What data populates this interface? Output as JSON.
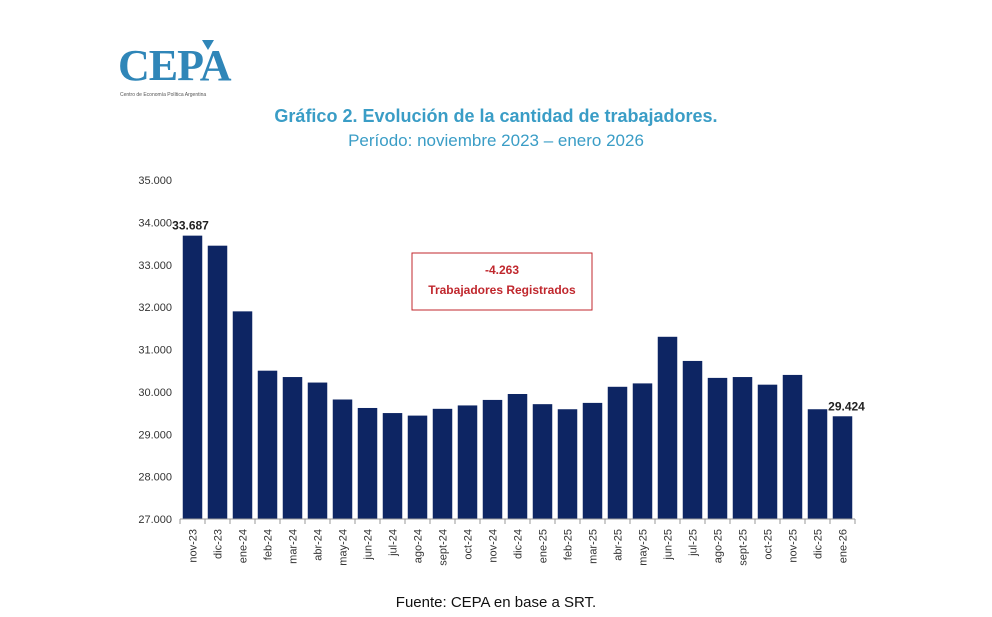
{
  "logo": {
    "text": "CEPA",
    "subtitle": "Centro de Economía Política Argentina"
  },
  "colors": {
    "bar": "#0d2563",
    "title": "#3a9dc6",
    "annotation": "#c0272d"
  },
  "annotation": {
    "value": "-4.263",
    "label": "Trabajadores Registrados"
  },
  "source": "Fuente: CEPA en base a SRT.",
  "chart_data": {
    "type": "bar",
    "title": "Gráfico 2. Evolución de la cantidad de trabajadores.",
    "subtitle": "Período: noviembre 2023 – enero 2026",
    "xlabel": "",
    "ylabel": "",
    "ylim": [
      27000,
      35000
    ],
    "yticks": [
      27000,
      28000,
      29000,
      30000,
      31000,
      32000,
      33000,
      34000,
      35000
    ],
    "ytick_labels": [
      "27.000",
      "28.000",
      "29.000",
      "30.000",
      "31.000",
      "32.000",
      "33.000",
      "34.000",
      "35.000"
    ],
    "categories": [
      "nov-23",
      "dic-23",
      "ene-24",
      "feb-24",
      "mar-24",
      "abr-24",
      "may-24",
      "jun-24",
      "jul-24",
      "ago-24",
      "sept-24",
      "oct-24",
      "nov-24",
      "dic-24",
      "ene-25",
      "feb-25",
      "mar-25",
      "abr-25",
      "may-25",
      "jun-25",
      "jul-25",
      "ago-25",
      "sept-25",
      "oct-25",
      "nov-25",
      "dic-25",
      "ene-26"
    ],
    "values": [
      33687,
      33450,
      31900,
      30500,
      30350,
      30220,
      29820,
      29620,
      29500,
      29440,
      29600,
      29680,
      29810,
      29950,
      29710,
      29590,
      29740,
      30120,
      30200,
      31300,
      30730,
      30330,
      30350,
      30170,
      30400,
      29590,
      29424
    ],
    "data_labels": [
      {
        "index": 0,
        "text": "33.687"
      },
      {
        "index": 26,
        "text": "29.424"
      }
    ]
  }
}
